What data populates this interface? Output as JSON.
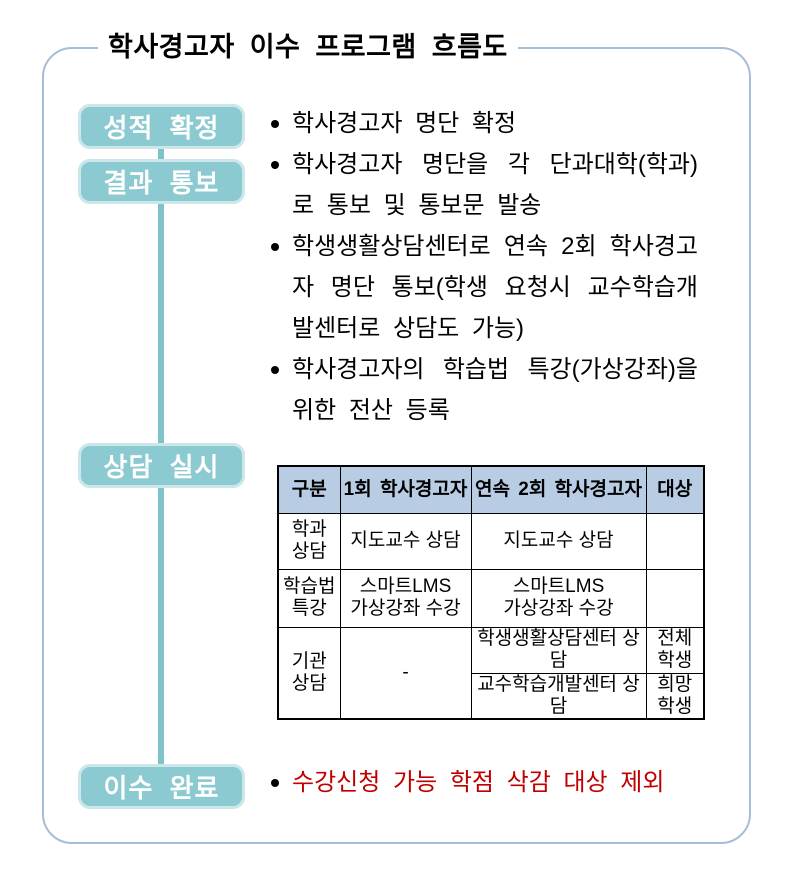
{
  "title": "학사경고자 이수 프로그램 흐름도",
  "colors": {
    "step_box_fill": "#8ccad1",
    "connector_line": "#7ec2ca",
    "frame_border": "#a6bdd7",
    "table_header_bg": "#b8cce4",
    "highlight_red": "#c00000",
    "step_box_text": "#ffffff",
    "body_text": "#000000"
  },
  "steps": [
    {
      "label": "성적 확정"
    },
    {
      "label": "결과 통보"
    },
    {
      "label": "상담 실시"
    },
    {
      "label": "이수 완료"
    }
  ],
  "notes": {
    "step1": [
      "학사경고자 명단 확정"
    ],
    "step2": [
      "학사경고자 명단을 각 단과대학(학과)로 통보 및 통보문 발송",
      "학생생활상담센터로 연속 2회 학사경고자 명단 통보(학생 요청시 교수학습개발센터로 상담도 가능)",
      "학사경고자의 학습법 특강(가상강좌)을 위한 전산 등록"
    ],
    "step4": [
      "수강신청 가능 학점 삭감 대상 제외"
    ]
  },
  "table": {
    "headers": [
      "구분",
      "1회 학사경고자",
      "연속 2회 학사경고자",
      "대상"
    ],
    "r1": {
      "cat": "학과\n상담",
      "c1": "지도교수 상담",
      "c2": "지도교수 상담",
      "c3": ""
    },
    "r2": {
      "cat": "학습법\n특강",
      "c1": "스마트LMS\n가상강좌 수강",
      "c2": "스마트LMS\n가상강좌 수강",
      "c3": ""
    },
    "r3": {
      "cat": "기관\n상담",
      "c1": "-",
      "a2": "학생생활상담센터 상담",
      "a3": "전체\n학생",
      "b2": "교수학습개발센터 상담",
      "b3": "희망\n학생"
    }
  }
}
